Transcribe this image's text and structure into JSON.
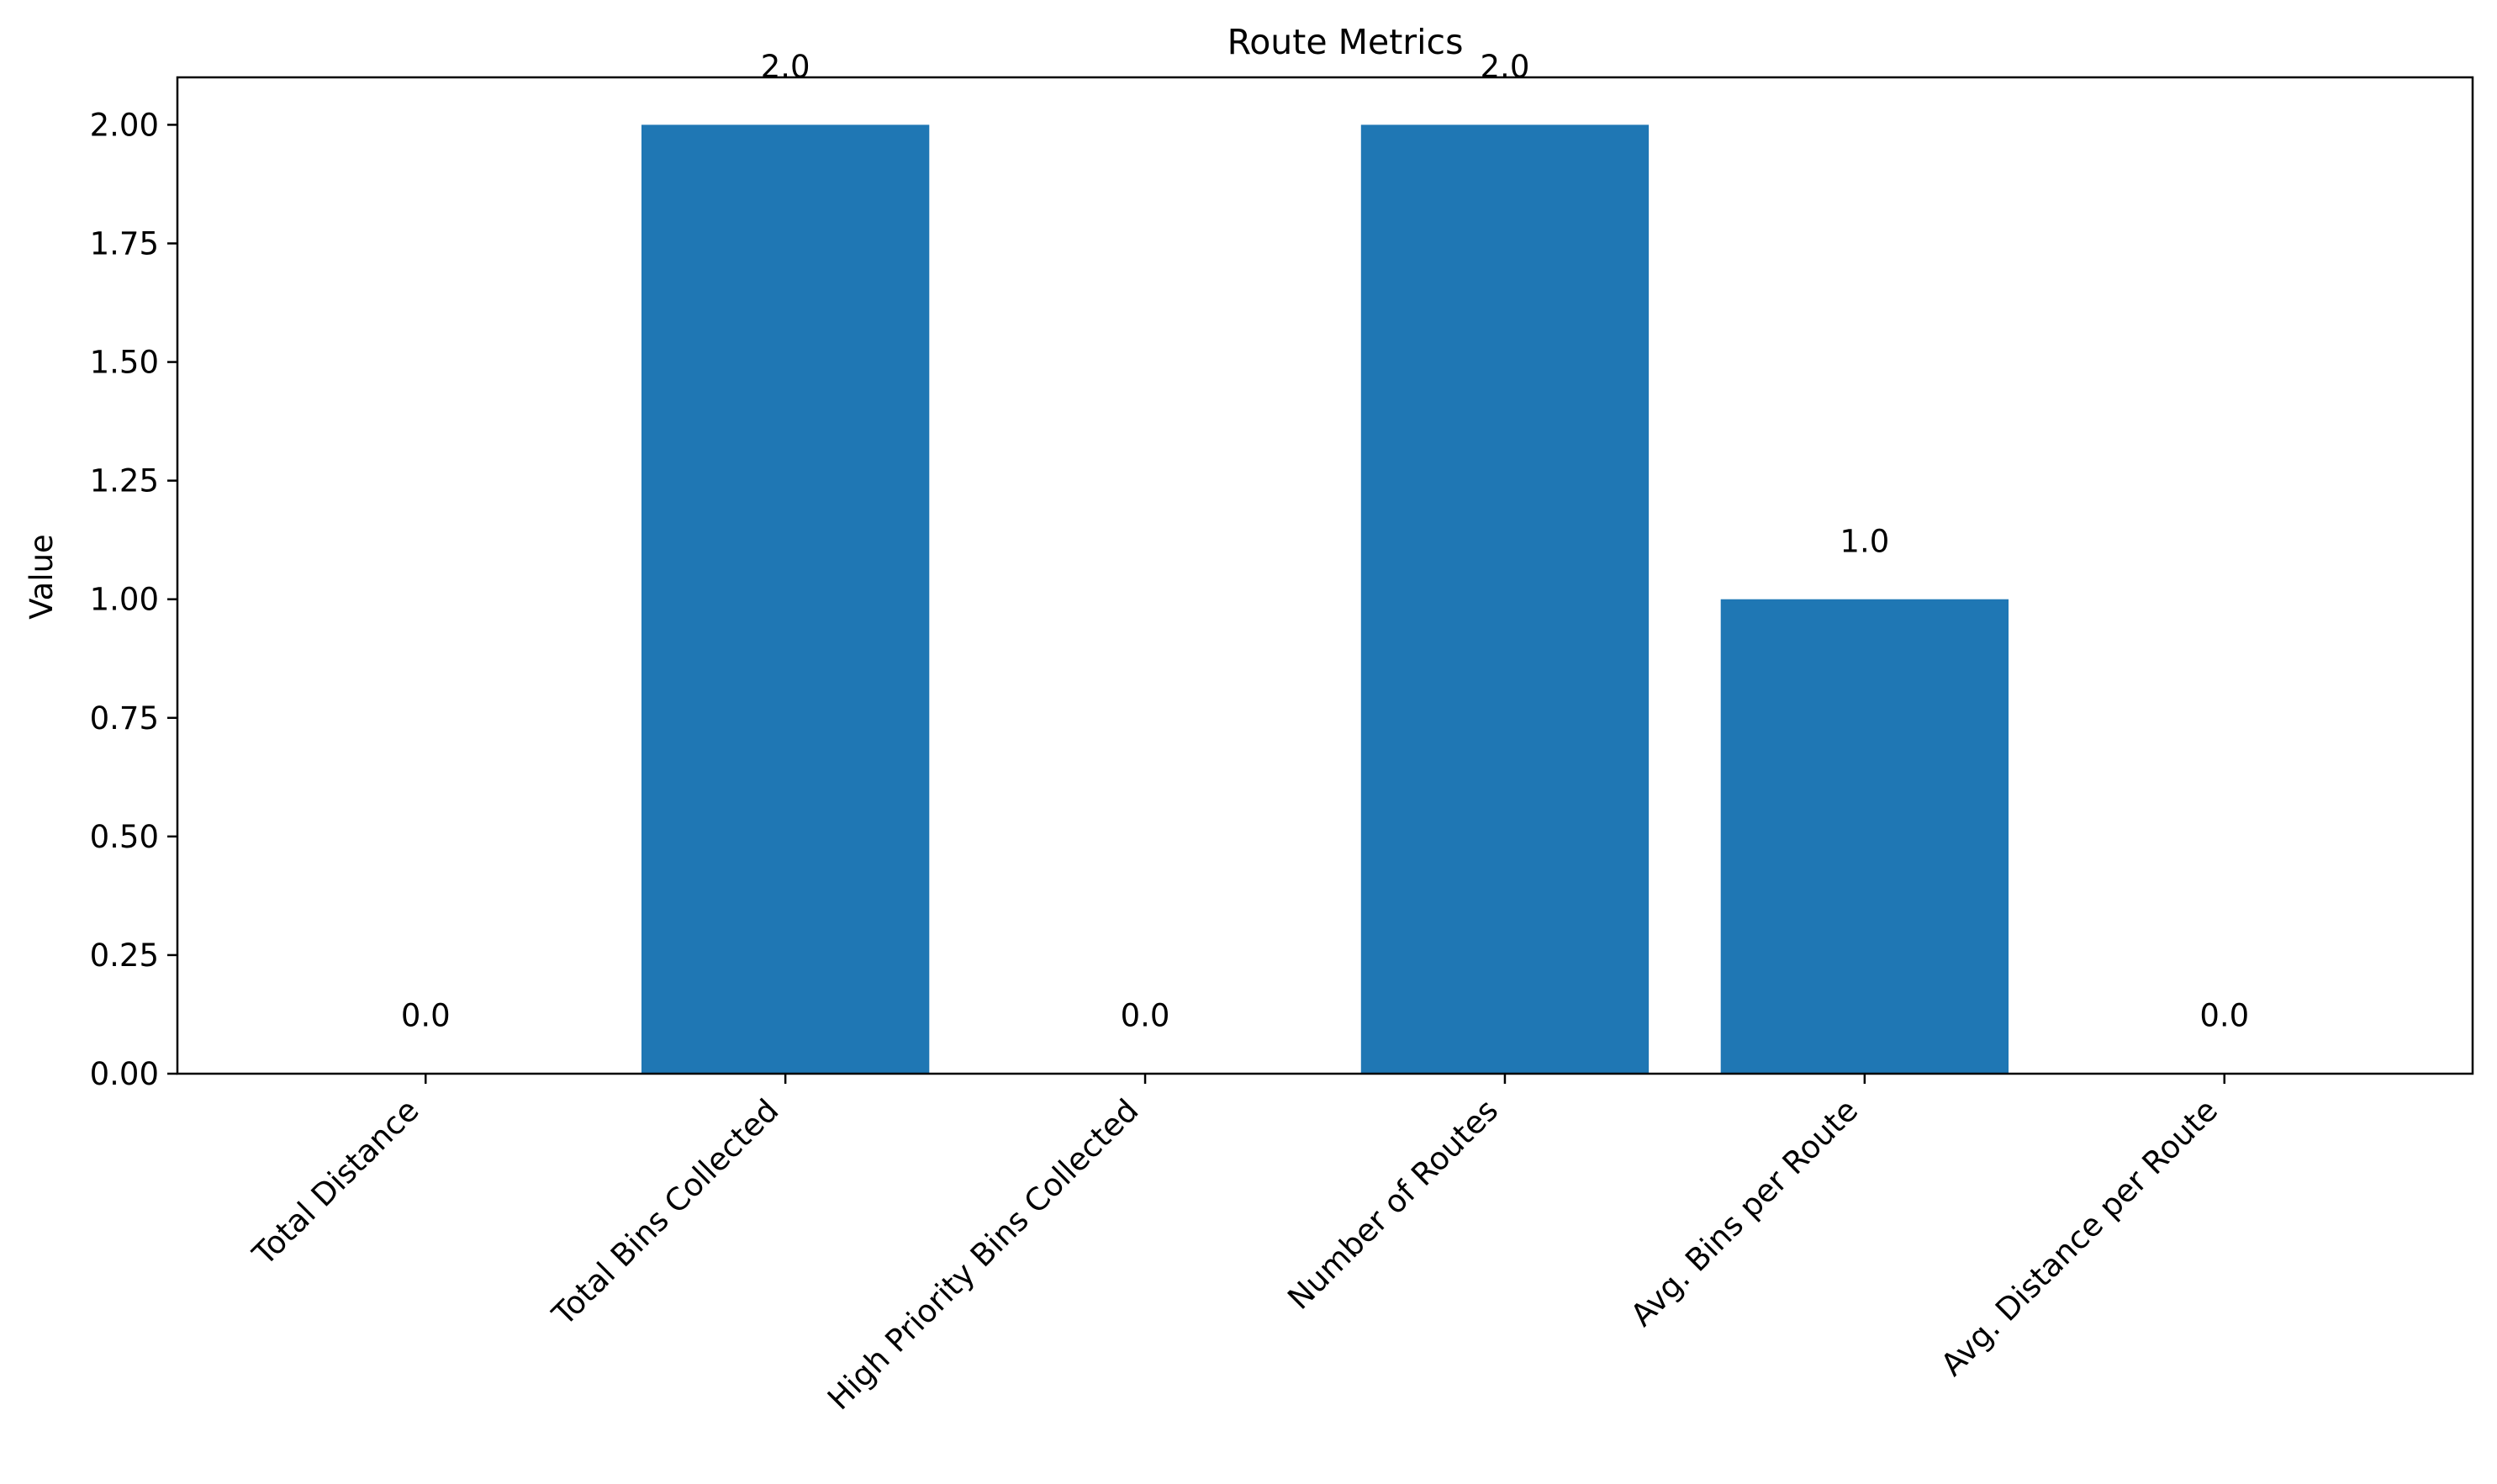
{
  "chart_data": {
    "type": "bar",
    "title": "Route Metrics",
    "xlabel": "",
    "ylabel": "Value",
    "categories": [
      "Total Distance",
      "Total Bins Collected",
      "High Priority Bins Collected",
      "Number of Routes",
      "Avg. Bins per Route",
      "Avg. Distance per Route"
    ],
    "values": [
      0.0,
      2.0,
      0.0,
      2.0,
      1.0,
      0.0
    ],
    "value_labels": [
      "0.0",
      "2.0",
      "0.0",
      "2.0",
      "1.0",
      "0.0"
    ],
    "ylim": [
      0,
      2.1
    ],
    "yticks": [
      "0.00",
      "0.25",
      "0.50",
      "0.75",
      "1.00",
      "1.25",
      "1.50",
      "1.75",
      "2.00"
    ],
    "bar_color": "#1f77b4",
    "grid": false,
    "legend": false
  }
}
